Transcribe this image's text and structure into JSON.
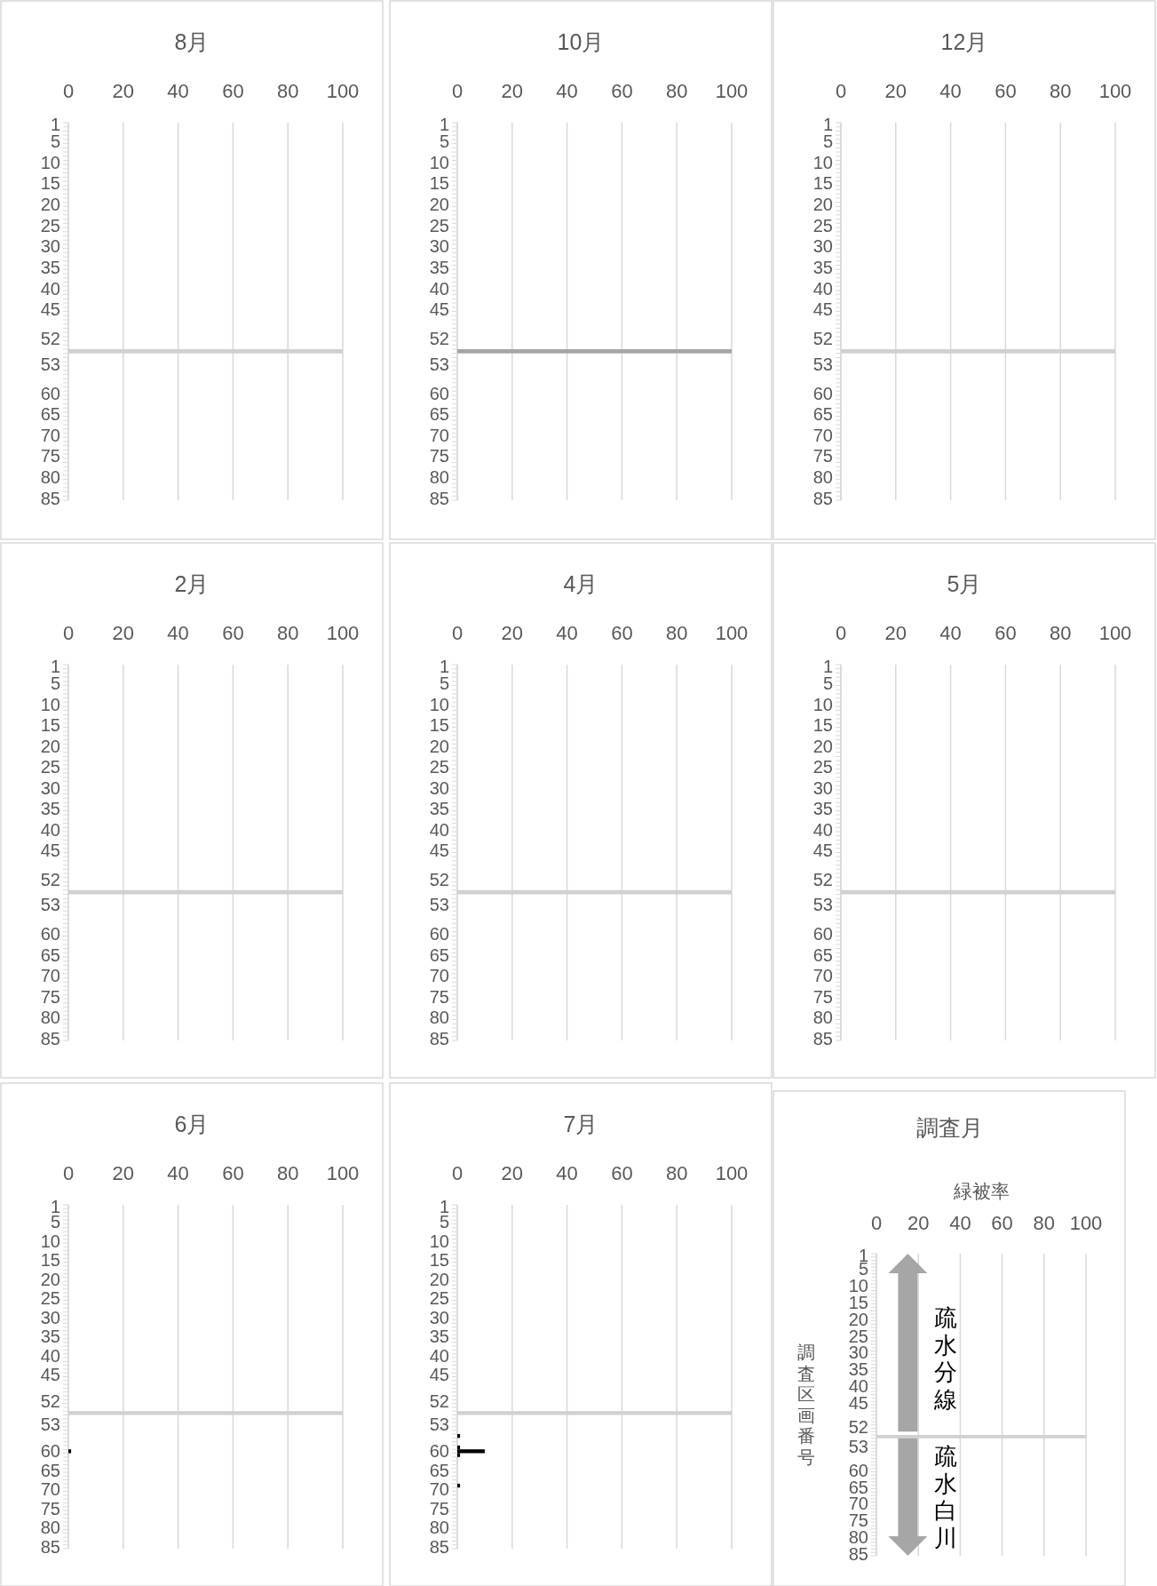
{
  "chart_data": [
    {
      "type": "bar",
      "orientation": "horizontal",
      "title": "8月",
      "categories": [
        "1",
        null,
        null,
        null,
        "5",
        null,
        null,
        null,
        null,
        "10",
        null,
        null,
        null,
        null,
        "15",
        null,
        null,
        null,
        null,
        "20",
        null,
        null,
        null,
        null,
        "25",
        null,
        null,
        null,
        null,
        "30",
        null,
        null,
        null,
        null,
        "35",
        null,
        null,
        null,
        null,
        "40",
        null,
        null,
        null,
        null,
        "45",
        null,
        null,
        null,
        null,
        null,
        null,
        "52",
        null,
        null,
        null,
        null,
        null,
        "53",
        null,
        null,
        null,
        null,
        null,
        null,
        "60",
        null,
        null,
        null,
        null,
        "65",
        null,
        null,
        null,
        null,
        "70",
        null,
        null,
        null,
        null,
        "75",
        null,
        null,
        null,
        null,
        "80",
        null,
        null,
        null,
        null,
        "85"
      ],
      "series": [
        {
          "color": "#d0d0d0",
          "values": [
            null,
            null,
            null,
            null,
            null,
            null,
            null,
            null,
            null,
            null,
            null,
            null,
            null,
            null,
            null,
            null,
            null,
            null,
            null,
            null,
            null,
            null,
            null,
            null,
            null,
            null,
            null,
            null,
            null,
            null,
            null,
            null,
            null,
            null,
            null,
            null,
            null,
            null,
            null,
            null,
            null,
            null,
            null,
            null,
            null,
            null,
            null,
            null,
            null,
            null,
            null,
            null,
            null,
            null,
            100,
            null,
            null,
            null,
            null,
            null,
            null,
            null,
            null,
            null,
            null,
            null,
            null,
            null,
            null,
            null,
            null,
            null,
            null,
            null,
            null,
            null,
            null,
            null,
            null,
            null,
            null,
            null,
            null,
            null,
            null,
            null,
            null,
            null,
            null,
            null
          ]
        }
      ],
      "xlim": [
        0,
        100
      ],
      "xticks": [
        0,
        20,
        40,
        60,
        80,
        100
      ],
      "grid": "x"
    },
    {
      "type": "bar",
      "orientation": "horizontal",
      "title": "10月",
      "categories": [
        "1",
        null,
        null,
        null,
        "5",
        null,
        null,
        null,
        null,
        "10",
        null,
        null,
        null,
        null,
        "15",
        null,
        null,
        null,
        null,
        "20",
        null,
        null,
        null,
        null,
        "25",
        null,
        null,
        null,
        null,
        "30",
        null,
        null,
        null,
        null,
        "35",
        null,
        null,
        null,
        null,
        "40",
        null,
        null,
        null,
        null,
        "45",
        null,
        null,
        null,
        null,
        null,
        null,
        "52",
        null,
        null,
        null,
        null,
        null,
        "53",
        null,
        null,
        null,
        null,
        null,
        null,
        "60",
        null,
        null,
        null,
        null,
        "65",
        null,
        null,
        null,
        null,
        "70",
        null,
        null,
        null,
        null,
        "75",
        null,
        null,
        null,
        null,
        "80",
        null,
        null,
        null,
        null,
        "85"
      ],
      "series": [
        {
          "color": "#a6a6a6",
          "values": [
            null,
            null,
            null,
            null,
            null,
            null,
            null,
            null,
            null,
            null,
            null,
            null,
            null,
            null,
            null,
            null,
            null,
            null,
            null,
            null,
            null,
            null,
            null,
            null,
            null,
            null,
            null,
            null,
            null,
            null,
            null,
            null,
            null,
            null,
            null,
            null,
            null,
            null,
            null,
            null,
            null,
            null,
            null,
            null,
            null,
            null,
            null,
            null,
            null,
            null,
            null,
            null,
            null,
            null,
            100,
            null,
            null,
            null,
            null,
            null,
            null,
            null,
            null,
            null,
            null,
            null,
            null,
            null,
            null,
            null,
            null,
            null,
            null,
            null,
            null,
            null,
            null,
            null,
            null,
            null,
            null,
            null,
            null,
            null,
            null,
            null,
            null,
            null,
            null,
            null
          ]
        }
      ],
      "xlim": [
        0,
        100
      ],
      "xticks": [
        0,
        20,
        40,
        60,
        80,
        100
      ],
      "grid": "x"
    },
    {
      "type": "bar",
      "orientation": "horizontal",
      "title": "12月",
      "categories": [
        "1",
        null,
        null,
        null,
        "5",
        null,
        null,
        null,
        null,
        "10",
        null,
        null,
        null,
        null,
        "15",
        null,
        null,
        null,
        null,
        "20",
        null,
        null,
        null,
        null,
        "25",
        null,
        null,
        null,
        null,
        "30",
        null,
        null,
        null,
        null,
        "35",
        null,
        null,
        null,
        null,
        "40",
        null,
        null,
        null,
        null,
        "45",
        null,
        null,
        null,
        null,
        null,
        null,
        "52",
        null,
        null,
        null,
        null,
        null,
        "53",
        null,
        null,
        null,
        null,
        null,
        null,
        "60",
        null,
        null,
        null,
        null,
        "65",
        null,
        null,
        null,
        null,
        "70",
        null,
        null,
        null,
        null,
        "75",
        null,
        null,
        null,
        null,
        "80",
        null,
        null,
        null,
        null,
        "85"
      ],
      "series": [
        {
          "color": "#d0d0d0",
          "values": [
            null,
            null,
            null,
            null,
            null,
            null,
            null,
            null,
            null,
            null,
            null,
            null,
            null,
            null,
            null,
            null,
            null,
            null,
            null,
            null,
            null,
            null,
            null,
            null,
            null,
            null,
            null,
            null,
            null,
            null,
            null,
            null,
            null,
            null,
            null,
            null,
            null,
            null,
            null,
            null,
            null,
            null,
            null,
            null,
            null,
            null,
            null,
            null,
            null,
            null,
            null,
            null,
            null,
            null,
            100,
            null,
            null,
            null,
            null,
            null,
            null,
            null,
            null,
            null,
            null,
            null,
            null,
            null,
            null,
            null,
            null,
            null,
            null,
            null,
            null,
            null,
            null,
            null,
            null,
            null,
            null,
            null,
            null,
            null,
            null,
            null,
            null,
            null,
            null,
            null
          ]
        }
      ],
      "xlim": [
        0,
        100
      ],
      "xticks": [
        0,
        20,
        40,
        60,
        80,
        100
      ],
      "grid": "x"
    },
    {
      "type": "bar",
      "orientation": "horizontal",
      "title": "2月",
      "categories": [
        "1",
        null,
        null,
        null,
        "5",
        null,
        null,
        null,
        null,
        "10",
        null,
        null,
        null,
        null,
        "15",
        null,
        null,
        null,
        null,
        "20",
        null,
        null,
        null,
        null,
        "25",
        null,
        null,
        null,
        null,
        "30",
        null,
        null,
        null,
        null,
        "35",
        null,
        null,
        null,
        null,
        "40",
        null,
        null,
        null,
        null,
        "45",
        null,
        null,
        null,
        null,
        null,
        null,
        "52",
        null,
        null,
        null,
        null,
        null,
        "53",
        null,
        null,
        null,
        null,
        null,
        null,
        "60",
        null,
        null,
        null,
        null,
        "65",
        null,
        null,
        null,
        null,
        "70",
        null,
        null,
        null,
        null,
        "75",
        null,
        null,
        null,
        null,
        "80",
        null,
        null,
        null,
        null,
        "85"
      ],
      "series": [
        {
          "color": "#d0d0d0",
          "values": [
            null,
            null,
            null,
            null,
            null,
            null,
            null,
            null,
            null,
            null,
            null,
            null,
            null,
            null,
            null,
            null,
            null,
            null,
            null,
            null,
            null,
            null,
            null,
            null,
            null,
            null,
            null,
            null,
            null,
            null,
            null,
            null,
            null,
            null,
            null,
            null,
            null,
            null,
            null,
            null,
            null,
            null,
            null,
            null,
            null,
            null,
            null,
            null,
            null,
            null,
            null,
            null,
            null,
            null,
            100,
            null,
            null,
            null,
            null,
            null,
            null,
            null,
            null,
            null,
            null,
            null,
            null,
            null,
            null,
            null,
            null,
            null,
            null,
            null,
            null,
            null,
            null,
            null,
            null,
            null,
            null,
            null,
            null,
            null,
            null,
            null,
            null,
            null,
            null,
            null
          ]
        }
      ],
      "xlim": [
        0,
        100
      ],
      "xticks": [
        0,
        20,
        40,
        60,
        80,
        100
      ],
      "grid": "x"
    },
    {
      "type": "bar",
      "orientation": "horizontal",
      "title": "4月",
      "categories": [
        "1",
        null,
        null,
        null,
        "5",
        null,
        null,
        null,
        null,
        "10",
        null,
        null,
        null,
        null,
        "15",
        null,
        null,
        null,
        null,
        "20",
        null,
        null,
        null,
        null,
        "25",
        null,
        null,
        null,
        null,
        "30",
        null,
        null,
        null,
        null,
        "35",
        null,
        null,
        null,
        null,
        "40",
        null,
        null,
        null,
        null,
        "45",
        null,
        null,
        null,
        null,
        null,
        null,
        "52",
        null,
        null,
        null,
        null,
        null,
        "53",
        null,
        null,
        null,
        null,
        null,
        null,
        "60",
        null,
        null,
        null,
        null,
        "65",
        null,
        null,
        null,
        null,
        "70",
        null,
        null,
        null,
        null,
        "75",
        null,
        null,
        null,
        null,
        "80",
        null,
        null,
        null,
        null,
        "85"
      ],
      "series": [
        {
          "color": "#d0d0d0",
          "values": [
            null,
            null,
            null,
            null,
            null,
            null,
            null,
            null,
            null,
            null,
            null,
            null,
            null,
            null,
            null,
            null,
            null,
            null,
            null,
            null,
            null,
            null,
            null,
            null,
            null,
            null,
            null,
            null,
            null,
            null,
            null,
            null,
            null,
            null,
            null,
            null,
            null,
            null,
            null,
            null,
            null,
            null,
            null,
            null,
            null,
            null,
            null,
            null,
            null,
            null,
            null,
            null,
            null,
            null,
            100,
            null,
            null,
            null,
            null,
            null,
            null,
            null,
            null,
            null,
            null,
            null,
            null,
            null,
            null,
            null,
            null,
            null,
            null,
            null,
            null,
            null,
            null,
            null,
            null,
            null,
            null,
            null,
            null,
            null,
            null,
            null,
            null,
            null,
            null,
            null
          ]
        }
      ],
      "xlim": [
        0,
        100
      ],
      "xticks": [
        0,
        20,
        40,
        60,
        80,
        100
      ],
      "grid": "x"
    },
    {
      "type": "bar",
      "orientation": "horizontal",
      "title": "5月",
      "categories": [
        "1",
        null,
        null,
        null,
        "5",
        null,
        null,
        null,
        null,
        "10",
        null,
        null,
        null,
        null,
        "15",
        null,
        null,
        null,
        null,
        "20",
        null,
        null,
        null,
        null,
        "25",
        null,
        null,
        null,
        null,
        "30",
        null,
        null,
        null,
        null,
        "35",
        null,
        null,
        null,
        null,
        "40",
        null,
        null,
        null,
        null,
        "45",
        null,
        null,
        null,
        null,
        null,
        null,
        "52",
        null,
        null,
        null,
        null,
        null,
        "53",
        null,
        null,
        null,
        null,
        null,
        null,
        "60",
        null,
        null,
        null,
        null,
        "65",
        null,
        null,
        null,
        null,
        "70",
        null,
        null,
        null,
        null,
        "75",
        null,
        null,
        null,
        null,
        "80",
        null,
        null,
        null,
        null,
        "85"
      ],
      "series": [
        {
          "color": "#d0d0d0",
          "values": [
            null,
            null,
            null,
            null,
            null,
            null,
            null,
            null,
            null,
            null,
            null,
            null,
            null,
            null,
            null,
            null,
            null,
            null,
            null,
            null,
            null,
            null,
            null,
            null,
            null,
            null,
            null,
            null,
            null,
            null,
            null,
            null,
            null,
            null,
            null,
            null,
            null,
            null,
            null,
            null,
            null,
            null,
            null,
            null,
            null,
            null,
            null,
            null,
            null,
            null,
            null,
            null,
            null,
            null,
            100,
            null,
            null,
            null,
            null,
            null,
            null,
            null,
            null,
            null,
            null,
            null,
            null,
            null,
            null,
            null,
            null,
            null,
            null,
            null,
            null,
            null,
            null,
            null,
            null,
            null,
            null,
            null,
            null,
            null,
            null,
            null,
            null,
            null,
            null,
            null
          ]
        }
      ],
      "xlim": [
        0,
        100
      ],
      "xticks": [
        0,
        20,
        40,
        60,
        80,
        100
      ],
      "grid": "x"
    },
    {
      "type": "bar",
      "orientation": "horizontal",
      "title": "6月",
      "categories": [
        "1",
        null,
        null,
        null,
        "5",
        null,
        null,
        null,
        null,
        "10",
        null,
        null,
        null,
        null,
        "15",
        null,
        null,
        null,
        null,
        "20",
        null,
        null,
        null,
        null,
        "25",
        null,
        null,
        null,
        null,
        "30",
        null,
        null,
        null,
        null,
        "35",
        null,
        null,
        null,
        null,
        "40",
        null,
        null,
        null,
        null,
        "45",
        null,
        null,
        null,
        null,
        null,
        null,
        "52",
        null,
        null,
        null,
        null,
        null,
        "53",
        null,
        null,
        null,
        null,
        null,
        null,
        "60",
        null,
        null,
        null,
        null,
        "65",
        null,
        null,
        null,
        null,
        "70",
        null,
        null,
        null,
        null,
        "75",
        null,
        null,
        null,
        null,
        "80",
        null,
        null,
        null,
        null,
        "85"
      ],
      "series": [
        {
          "color": "#000000",
          "values": [
            null,
            null,
            null,
            null,
            null,
            null,
            null,
            null,
            null,
            null,
            null,
            null,
            null,
            null,
            null,
            null,
            null,
            null,
            null,
            null,
            null,
            null,
            null,
            null,
            null,
            null,
            null,
            null,
            null,
            null,
            null,
            null,
            null,
            null,
            null,
            null,
            null,
            null,
            null,
            null,
            null,
            null,
            null,
            null,
            null,
            null,
            null,
            null,
            null,
            null,
            null,
            null,
            null,
            null,
            null,
            null,
            null,
            null,
            null,
            null,
            null,
            null,
            null,
            null,
            1,
            null,
            null,
            null,
            null,
            null,
            null,
            null,
            null,
            null,
            null,
            null,
            null,
            null,
            null,
            null,
            null,
            null,
            null,
            null,
            null,
            null,
            null,
            null,
            null,
            null
          ]
        },
        {
          "color": "#d0d0d0",
          "values": [
            null,
            null,
            null,
            null,
            null,
            null,
            null,
            null,
            null,
            null,
            null,
            null,
            null,
            null,
            null,
            null,
            null,
            null,
            null,
            null,
            null,
            null,
            null,
            null,
            null,
            null,
            null,
            null,
            null,
            null,
            null,
            null,
            null,
            null,
            null,
            null,
            null,
            null,
            null,
            null,
            null,
            null,
            null,
            null,
            null,
            null,
            null,
            null,
            null,
            null,
            null,
            null,
            null,
            null,
            100,
            null,
            null,
            null,
            null,
            null,
            null,
            null,
            null,
            null,
            null,
            null,
            null,
            null,
            null,
            null,
            null,
            null,
            null,
            null,
            null,
            null,
            null,
            null,
            null,
            null,
            null,
            null,
            null,
            null,
            null,
            null,
            null,
            null,
            null,
            null
          ]
        }
      ],
      "xlim": [
        0,
        100
      ],
      "xticks": [
        0,
        20,
        40,
        60,
        80,
        100
      ],
      "grid": "x"
    },
    {
      "type": "bar",
      "orientation": "horizontal",
      "title": "7月",
      "categories": [
        "1",
        null,
        null,
        null,
        "5",
        null,
        null,
        null,
        null,
        "10",
        null,
        null,
        null,
        null,
        "15",
        null,
        null,
        null,
        null,
        "20",
        null,
        null,
        null,
        null,
        "25",
        null,
        null,
        null,
        null,
        "30",
        null,
        null,
        null,
        null,
        "35",
        null,
        null,
        null,
        null,
        "40",
        null,
        null,
        null,
        null,
        "45",
        null,
        null,
        null,
        null,
        null,
        null,
        "52",
        null,
        null,
        null,
        null,
        null,
        "53",
        null,
        null,
        null,
        null,
        null,
        null,
        "60",
        null,
        null,
        null,
        null,
        "65",
        null,
        null,
        null,
        null,
        "70",
        null,
        null,
        null,
        null,
        "75",
        null,
        null,
        null,
        null,
        "80",
        null,
        null,
        null,
        null,
        "85"
      ],
      "series": [
        {
          "color": "#000000",
          "values": [
            null,
            null,
            null,
            null,
            null,
            null,
            null,
            null,
            null,
            null,
            null,
            null,
            null,
            null,
            null,
            null,
            null,
            null,
            null,
            null,
            null,
            null,
            null,
            null,
            null,
            null,
            null,
            null,
            null,
            null,
            null,
            null,
            null,
            null,
            null,
            null,
            null,
            null,
            null,
            null,
            null,
            null,
            null,
            null,
            null,
            null,
            null,
            null,
            null,
            null,
            null,
            null,
            null,
            null,
            null,
            null,
            null,
            null,
            null,
            null,
            1,
            null,
            null,
            1,
            10,
            1,
            null,
            null,
            null,
            null,
            null,
            null,
            null,
            1,
            null,
            null,
            null,
            null,
            null,
            null,
            null,
            null,
            null,
            null,
            null,
            null,
            null,
            null,
            null,
            null
          ]
        },
        {
          "color": "#d0d0d0",
          "values": [
            null,
            null,
            null,
            null,
            null,
            null,
            null,
            null,
            null,
            null,
            null,
            null,
            null,
            null,
            null,
            null,
            null,
            null,
            null,
            null,
            null,
            null,
            null,
            null,
            null,
            null,
            null,
            null,
            null,
            null,
            null,
            null,
            null,
            null,
            null,
            null,
            null,
            null,
            null,
            null,
            null,
            null,
            null,
            null,
            null,
            null,
            null,
            null,
            null,
            null,
            null,
            null,
            null,
            null,
            100,
            null,
            null,
            null,
            null,
            null,
            null,
            null,
            null,
            null,
            null,
            null,
            null,
            null,
            null,
            null,
            null,
            null,
            null,
            null,
            null,
            null,
            null,
            null,
            null,
            null,
            null,
            null,
            null,
            null,
            null,
            null,
            null,
            null,
            null,
            null
          ]
        }
      ],
      "xlim": [
        0,
        100
      ],
      "xticks": [
        0,
        20,
        40,
        60,
        80,
        100
      ],
      "grid": "x"
    },
    {
      "type": "bar",
      "orientation": "horizontal",
      "title": "調査月",
      "xlabel": "緑被率",
      "ylabel": "調査区画番号",
      "annotations": [
        "疏水分線",
        "疏水白川"
      ],
      "categories": [
        "1",
        null,
        null,
        null,
        "5",
        null,
        null,
        null,
        null,
        "10",
        null,
        null,
        null,
        null,
        "15",
        null,
        null,
        null,
        null,
        "20",
        null,
        null,
        null,
        null,
        "25",
        null,
        null,
        null,
        null,
        "30",
        null,
        null,
        null,
        null,
        "35",
        null,
        null,
        null,
        null,
        "40",
        null,
        null,
        null,
        null,
        "45",
        null,
        null,
        null,
        null,
        null,
        null,
        "52",
        null,
        null,
        null,
        null,
        null,
        "53",
        null,
        null,
        null,
        null,
        null,
        null,
        "60",
        null,
        null,
        null,
        null,
        "65",
        null,
        null,
        null,
        null,
        "70",
        null,
        null,
        null,
        null,
        "75",
        null,
        null,
        null,
        null,
        "80",
        null,
        null,
        null,
        null,
        "85"
      ],
      "series": [
        {
          "color": "#d0d0d0",
          "values": [
            null,
            null,
            null,
            null,
            null,
            null,
            null,
            null,
            null,
            null,
            null,
            null,
            null,
            null,
            null,
            null,
            null,
            null,
            null,
            null,
            null,
            null,
            null,
            null,
            null,
            null,
            null,
            null,
            null,
            null,
            null,
            null,
            null,
            null,
            null,
            null,
            null,
            null,
            null,
            null,
            null,
            null,
            null,
            null,
            null,
            null,
            null,
            null,
            null,
            null,
            null,
            null,
            null,
            null,
            100,
            null,
            null,
            null,
            null,
            null,
            null,
            null,
            null,
            null,
            null,
            null,
            null,
            null,
            null,
            null,
            null,
            null,
            null,
            null,
            null,
            null,
            null,
            null,
            null,
            null,
            null,
            null,
            null,
            null,
            null,
            null,
            null,
            null,
            null,
            null
          ]
        }
      ],
      "xlim": [
        0,
        100
      ],
      "xticks": [
        0,
        20,
        40,
        60,
        80,
        100
      ],
      "grid": "x"
    }
  ]
}
